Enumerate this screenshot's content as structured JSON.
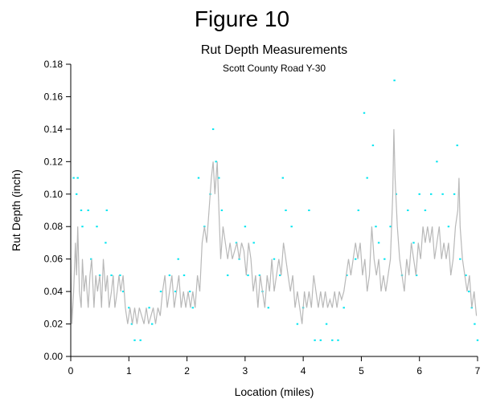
{
  "figure_title": "Figure 10",
  "chart_data": {
    "type": "scatter",
    "title": "Rut Depth Measurements",
    "subtitle": "Scott County Road Y-30",
    "xlabel": "Location (miles)",
    "ylabel": "Rut Depth (inch)",
    "xlim": [
      0,
      7
    ],
    "ylim": [
      0,
      0.18
    ],
    "x_ticks": [
      0,
      1,
      2,
      3,
      4,
      5,
      6,
      7
    ],
    "y_ticks": [
      0.0,
      0.02,
      0.04,
      0.06,
      0.08,
      0.1,
      0.12,
      0.14,
      0.16,
      0.18
    ],
    "x_tick_labels": [
      "0",
      "1",
      "2",
      "3",
      "4",
      "5",
      "6",
      "7"
    ],
    "y_tick_labels": [
      "0.00",
      "0.02",
      "0.04",
      "0.06",
      "0.08",
      "0.10",
      "0.12",
      "0.14",
      "0.16",
      "0.18"
    ],
    "grid": false,
    "legend": "none",
    "colors": {
      "points": "#00e5f0",
      "line": "#b8b8b8",
      "axis": "#000000"
    },
    "series": [
      {
        "type": "scatter",
        "points": [
          [
            0.05,
            0.11
          ],
          [
            0.1,
            0.1
          ],
          [
            0.12,
            0.11
          ],
          [
            0.18,
            0.09
          ],
          [
            0.2,
            0.08
          ],
          [
            0.3,
            0.09
          ],
          [
            0.45,
            0.08
          ],
          [
            0.6,
            0.07
          ],
          [
            0.62,
            0.09
          ],
          [
            0.35,
            0.06
          ],
          [
            0.5,
            0.05
          ],
          [
            0.7,
            0.05
          ],
          [
            0.85,
            0.05
          ],
          [
            0.9,
            0.04
          ],
          [
            1.0,
            0.03
          ],
          [
            1.05,
            0.02
          ],
          [
            1.1,
            0.01
          ],
          [
            1.2,
            0.01
          ],
          [
            1.35,
            0.03
          ],
          [
            1.4,
            0.02
          ],
          [
            1.55,
            0.04
          ],
          [
            1.7,
            0.05
          ],
          [
            1.8,
            0.04
          ],
          [
            1.85,
            0.06
          ],
          [
            1.95,
            0.05
          ],
          [
            2.05,
            0.04
          ],
          [
            2.1,
            0.03
          ],
          [
            2.2,
            0.11
          ],
          [
            2.3,
            0.08
          ],
          [
            2.4,
            0.1
          ],
          [
            2.45,
            0.14
          ],
          [
            2.5,
            0.12
          ],
          [
            2.55,
            0.11
          ],
          [
            2.6,
            0.09
          ],
          [
            2.7,
            0.05
          ],
          [
            2.85,
            0.07
          ],
          [
            2.9,
            0.06
          ],
          [
            3.0,
            0.08
          ],
          [
            3.05,
            0.05
          ],
          [
            3.15,
            0.07
          ],
          [
            3.25,
            0.05
          ],
          [
            3.3,
            0.04
          ],
          [
            3.4,
            0.03
          ],
          [
            3.5,
            0.06
          ],
          [
            3.6,
            0.05
          ],
          [
            3.65,
            0.11
          ],
          [
            3.7,
            0.09
          ],
          [
            3.8,
            0.08
          ],
          [
            3.9,
            0.02
          ],
          [
            4.0,
            0.03
          ],
          [
            4.1,
            0.09
          ],
          [
            4.2,
            0.01
          ],
          [
            4.3,
            0.01
          ],
          [
            4.4,
            0.02
          ],
          [
            4.5,
            0.01
          ],
          [
            4.6,
            0.01
          ],
          [
            4.7,
            0.03
          ],
          [
            4.75,
            0.05
          ],
          [
            4.9,
            0.06
          ],
          [
            4.95,
            0.09
          ],
          [
            5.05,
            0.15
          ],
          [
            5.1,
            0.11
          ],
          [
            5.2,
            0.13
          ],
          [
            5.25,
            0.08
          ],
          [
            5.3,
            0.07
          ],
          [
            5.4,
            0.06
          ],
          [
            5.5,
            0.08
          ],
          [
            5.57,
            0.17
          ],
          [
            5.6,
            0.1
          ],
          [
            5.7,
            0.05
          ],
          [
            5.8,
            0.09
          ],
          [
            5.9,
            0.07
          ],
          [
            5.95,
            0.05
          ],
          [
            6.0,
            0.1
          ],
          [
            6.1,
            0.09
          ],
          [
            6.2,
            0.1
          ],
          [
            6.3,
            0.12
          ],
          [
            6.4,
            0.1
          ],
          [
            6.5,
            0.08
          ],
          [
            6.6,
            0.1
          ],
          [
            6.65,
            0.13
          ],
          [
            6.7,
            0.06
          ],
          [
            6.8,
            0.05
          ],
          [
            6.85,
            0.04
          ],
          [
            6.9,
            0.03
          ],
          [
            6.95,
            0.02
          ],
          [
            7.0,
            0.01
          ]
        ]
      },
      {
        "type": "line",
        "points": [
          [
            0.0,
            0.06
          ],
          [
            0.02,
            0.02
          ],
          [
            0.05,
            0.04
          ],
          [
            0.08,
            0.07
          ],
          [
            0.1,
            0.05
          ],
          [
            0.12,
            0.08
          ],
          [
            0.15,
            0.04
          ],
          [
            0.18,
            0.03
          ],
          [
            0.2,
            0.06
          ],
          [
            0.23,
            0.04
          ],
          [
            0.26,
            0.05
          ],
          [
            0.3,
            0.03
          ],
          [
            0.33,
            0.05
          ],
          [
            0.36,
            0.06
          ],
          [
            0.4,
            0.03
          ],
          [
            0.43,
            0.05
          ],
          [
            0.46,
            0.04
          ],
          [
            0.5,
            0.05
          ],
          [
            0.53,
            0.03
          ],
          [
            0.56,
            0.06
          ],
          [
            0.6,
            0.04
          ],
          [
            0.63,
            0.05
          ],
          [
            0.66,
            0.03
          ],
          [
            0.7,
            0.04
          ],
          [
            0.73,
            0.05
          ],
          [
            0.76,
            0.03
          ],
          [
            0.8,
            0.04
          ],
          [
            0.83,
            0.05
          ],
          [
            0.86,
            0.04
          ],
          [
            0.9,
            0.05
          ],
          [
            0.94,
            0.03
          ],
          [
            0.98,
            0.02
          ],
          [
            1.02,
            0.03
          ],
          [
            1.06,
            0.02
          ],
          [
            1.1,
            0.03
          ],
          [
            1.14,
            0.02
          ],
          [
            1.18,
            0.03
          ],
          [
            1.22,
            0.025
          ],
          [
            1.26,
            0.02
          ],
          [
            1.3,
            0.03
          ],
          [
            1.34,
            0.02
          ],
          [
            1.38,
            0.025
          ],
          [
            1.42,
            0.03
          ],
          [
            1.46,
            0.02
          ],
          [
            1.5,
            0.03
          ],
          [
            1.54,
            0.025
          ],
          [
            1.58,
            0.04
          ],
          [
            1.62,
            0.05
          ],
          [
            1.66,
            0.03
          ],
          [
            1.7,
            0.04
          ],
          [
            1.74,
            0.05
          ],
          [
            1.78,
            0.03
          ],
          [
            1.82,
            0.04
          ],
          [
            1.86,
            0.05
          ],
          [
            1.9,
            0.03
          ],
          [
            1.94,
            0.04
          ],
          [
            1.98,
            0.03
          ],
          [
            2.02,
            0.04
          ],
          [
            2.06,
            0.03
          ],
          [
            2.1,
            0.04
          ],
          [
            2.14,
            0.03
          ],
          [
            2.18,
            0.05
          ],
          [
            2.22,
            0.04
          ],
          [
            2.26,
            0.07
          ],
          [
            2.3,
            0.08
          ],
          [
            2.34,
            0.07
          ],
          [
            2.38,
            0.09
          ],
          [
            2.42,
            0.11
          ],
          [
            2.45,
            0.12
          ],
          [
            2.48,
            0.1
          ],
          [
            2.52,
            0.12
          ],
          [
            2.55,
            0.09
          ],
          [
            2.58,
            0.06
          ],
          [
            2.62,
            0.08
          ],
          [
            2.66,
            0.07
          ],
          [
            2.7,
            0.06
          ],
          [
            2.74,
            0.07
          ],
          [
            2.78,
            0.06
          ],
          [
            2.82,
            0.065
          ],
          [
            2.86,
            0.07
          ],
          [
            2.9,
            0.06
          ],
          [
            2.94,
            0.07
          ],
          [
            2.98,
            0.065
          ],
          [
            3.02,
            0.05
          ],
          [
            3.06,
            0.07
          ],
          [
            3.1,
            0.06
          ],
          [
            3.14,
            0.04
          ],
          [
            3.18,
            0.05
          ],
          [
            3.22,
            0.03
          ],
          [
            3.26,
            0.05
          ],
          [
            3.3,
            0.04
          ],
          [
            3.34,
            0.03
          ],
          [
            3.38,
            0.05
          ],
          [
            3.42,
            0.04
          ],
          [
            3.46,
            0.06
          ],
          [
            3.5,
            0.04
          ],
          [
            3.54,
            0.05
          ],
          [
            3.58,
            0.06
          ],
          [
            3.62,
            0.05
          ],
          [
            3.66,
            0.07
          ],
          [
            3.7,
            0.06
          ],
          [
            3.74,
            0.05
          ],
          [
            3.78,
            0.04
          ],
          [
            3.82,
            0.05
          ],
          [
            3.86,
            0.03
          ],
          [
            3.9,
            0.04
          ],
          [
            3.94,
            0.03
          ],
          [
            3.98,
            0.02
          ],
          [
            4.02,
            0.04
          ],
          [
            4.06,
            0.03
          ],
          [
            4.1,
            0.04
          ],
          [
            4.14,
            0.03
          ],
          [
            4.18,
            0.05
          ],
          [
            4.22,
            0.04
          ],
          [
            4.26,
            0.03
          ],
          [
            4.3,
            0.04
          ],
          [
            4.34,
            0.03
          ],
          [
            4.38,
            0.04
          ],
          [
            4.42,
            0.03
          ],
          [
            4.46,
            0.035
          ],
          [
            4.5,
            0.03
          ],
          [
            4.54,
            0.04
          ],
          [
            4.58,
            0.03
          ],
          [
            4.62,
            0.04
          ],
          [
            4.66,
            0.035
          ],
          [
            4.7,
            0.04
          ],
          [
            4.74,
            0.05
          ],
          [
            4.78,
            0.06
          ],
          [
            4.82,
            0.05
          ],
          [
            4.86,
            0.06
          ],
          [
            4.9,
            0.07
          ],
          [
            4.94,
            0.06
          ],
          [
            4.98,
            0.07
          ],
          [
            5.02,
            0.05
          ],
          [
            5.06,
            0.06
          ],
          [
            5.1,
            0.04
          ],
          [
            5.14,
            0.05
          ],
          [
            5.18,
            0.08
          ],
          [
            5.22,
            0.06
          ],
          [
            5.26,
            0.05
          ],
          [
            5.3,
            0.06
          ],
          [
            5.34,
            0.04
          ],
          [
            5.38,
            0.05
          ],
          [
            5.42,
            0.04
          ],
          [
            5.46,
            0.05
          ],
          [
            5.5,
            0.06
          ],
          [
            5.54,
            0.1
          ],
          [
            5.56,
            0.14
          ],
          [
            5.58,
            0.11
          ],
          [
            5.62,
            0.08
          ],
          [
            5.66,
            0.06
          ],
          [
            5.7,
            0.05
          ],
          [
            5.74,
            0.04
          ],
          [
            5.78,
            0.06
          ],
          [
            5.82,
            0.05
          ],
          [
            5.86,
            0.07
          ],
          [
            5.9,
            0.06
          ],
          [
            5.94,
            0.05
          ],
          [
            5.98,
            0.07
          ],
          [
            6.02,
            0.06
          ],
          [
            6.06,
            0.08
          ],
          [
            6.1,
            0.07
          ],
          [
            6.14,
            0.08
          ],
          [
            6.18,
            0.07
          ],
          [
            6.22,
            0.08
          ],
          [
            6.26,
            0.06
          ],
          [
            6.3,
            0.07
          ],
          [
            6.34,
            0.08
          ],
          [
            6.38,
            0.06
          ],
          [
            6.42,
            0.07
          ],
          [
            6.46,
            0.06
          ],
          [
            6.5,
            0.07
          ],
          [
            6.54,
            0.05
          ],
          [
            6.58,
            0.06
          ],
          [
            6.62,
            0.08
          ],
          [
            6.66,
            0.09
          ],
          [
            6.68,
            0.11
          ],
          [
            6.7,
            0.08
          ],
          [
            6.74,
            0.06
          ],
          [
            6.78,
            0.05
          ],
          [
            6.82,
            0.04
          ],
          [
            6.86,
            0.05
          ],
          [
            6.9,
            0.03
          ],
          [
            6.94,
            0.04
          ],
          [
            6.98,
            0.025
          ]
        ]
      }
    ]
  }
}
